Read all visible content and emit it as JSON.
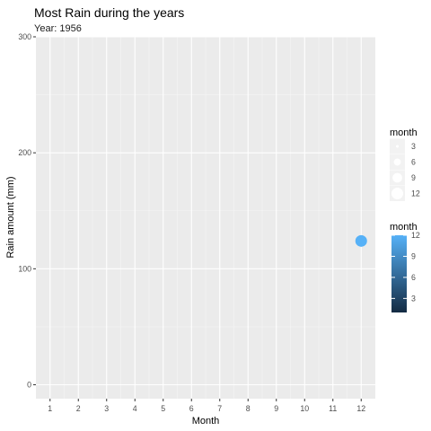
{
  "chart_data": {
    "type": "scatter",
    "title": "Most Rain during the years",
    "subtitle": "Year: 1956",
    "xlabel": "Month",
    "ylabel": "Rain amount (mm)",
    "x_ticks": [
      1,
      2,
      3,
      4,
      5,
      6,
      7,
      8,
      9,
      10,
      11,
      12
    ],
    "y_ticks": [
      0,
      100,
      200,
      300
    ],
    "xlim": [
      0.5,
      12.5
    ],
    "ylim": [
      -12,
      300
    ],
    "grid": true,
    "points": [
      {
        "month": 12,
        "rain": 124
      }
    ],
    "legend_size": {
      "title": "month",
      "values": [
        3,
        6,
        9,
        12
      ]
    },
    "legend_color": {
      "title": "month",
      "values": [
        3,
        6,
        9,
        12
      ],
      "low_color": "#132B43",
      "high_color": "#56B1F7"
    },
    "legend_position": "right"
  }
}
